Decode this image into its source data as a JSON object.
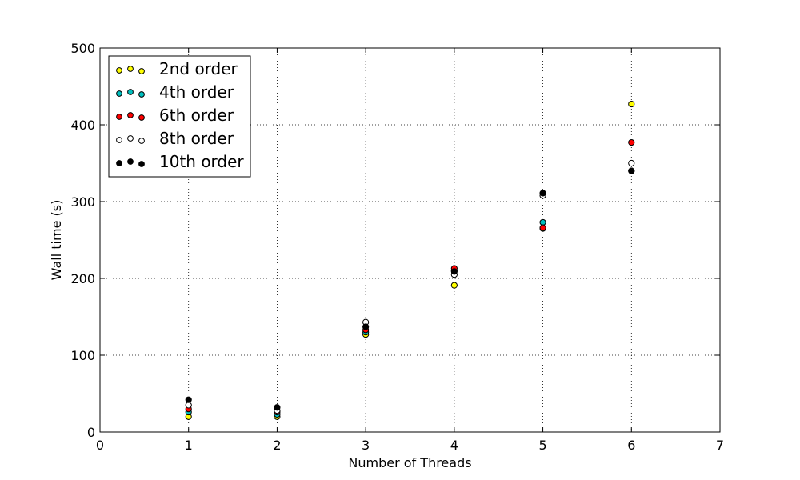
{
  "chart_data": {
    "type": "scatter",
    "title": "",
    "xlabel": "Number of Threads",
    "ylabel": "Wall time (s)",
    "xlim": [
      0,
      7
    ],
    "ylim": [
      0,
      500
    ],
    "xticks": [
      0,
      1,
      2,
      3,
      4,
      5,
      6,
      7
    ],
    "yticks": [
      0,
      100,
      200,
      300,
      400,
      500
    ],
    "grid": true,
    "legend_position": "top-left",
    "series": [
      {
        "name": "2nd order",
        "color": "#ffff00",
        "x": [
          1,
          2,
          3,
          4,
          5,
          6
        ],
        "y": [
          20,
          20,
          127,
          191,
          265,
          427
        ]
      },
      {
        "name": "4th order",
        "color": "#00bfbf",
        "x": [
          1,
          2,
          3,
          4,
          5,
          6
        ],
        "y": [
          26,
          23,
          130,
          210,
          273,
          340
        ]
      },
      {
        "name": "6th order",
        "color": "#ff0000",
        "x": [
          1,
          2,
          3,
          4,
          5,
          6
        ],
        "y": [
          30,
          26,
          133,
          213,
          266,
          377
        ]
      },
      {
        "name": "8th order",
        "color": "#ffffff",
        "x": [
          1,
          2,
          3,
          4,
          5,
          6
        ],
        "y": [
          35,
          28,
          143,
          205,
          308,
          350
        ]
      },
      {
        "name": "10th order",
        "color": "#000000",
        "x": [
          1,
          2,
          3,
          4,
          5,
          6
        ],
        "y": [
          42,
          32,
          137,
          209,
          311,
          340
        ]
      }
    ]
  }
}
